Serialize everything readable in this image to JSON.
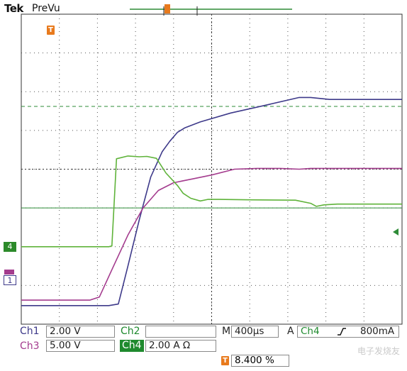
{
  "header": {
    "brand": "Tek",
    "mode": "PreVu",
    "trigger_marker": "T"
  },
  "channels": {
    "ch1": {
      "label": "Ch1",
      "value": "2.00 V",
      "color": "#3e3a8a",
      "marker": "1"
    },
    "ch2": {
      "label": "Ch2",
      "value": "",
      "color": "#1f8a2e"
    },
    "ch3": {
      "label": "Ch3",
      "value": "5.00 V",
      "color": "#a43c8e"
    },
    "ch4": {
      "label": "Ch4",
      "value": "2.00 A Ω",
      "color": "#5fb33a",
      "marker": "4"
    }
  },
  "timebase": {
    "label": "M",
    "value": "400µs"
  },
  "trigger": {
    "mode": "A",
    "source": "Ch4",
    "slope_icon": "rising-edge-icon",
    "level": "800mA"
  },
  "position": {
    "icon": "T",
    "value": "8.400 %"
  },
  "chart_data": {
    "type": "line",
    "grid": true,
    "x_divisions": 10,
    "y_divisions": 8,
    "x_unit": "div",
    "y_unit": "div",
    "trigger_level_div": 1.62,
    "series": [
      {
        "name": "Ch1",
        "color": "#3e3a8a",
        "x": [
          0,
          2.3,
          2.55,
          2.8,
          3.1,
          3.4,
          3.7,
          3.9,
          4.1,
          4.3,
          4.7,
          5.5,
          6.5,
          7.3,
          7.6,
          8.1,
          9.0,
          10.0
        ],
        "y": [
          -3.52,
          -3.52,
          -3.48,
          -2.5,
          -1.3,
          -0.2,
          0.45,
          0.72,
          0.95,
          1.07,
          1.22,
          1.45,
          1.67,
          1.85,
          1.85,
          1.8,
          1.8,
          1.8
        ]
      },
      {
        "name": "Ch3",
        "color": "#a43c8e",
        "x": [
          0,
          1.8,
          2.05,
          2.4,
          2.8,
          3.2,
          3.6,
          4.0,
          4.5,
          5.0,
          5.6,
          6.2,
          6.8,
          7.3,
          7.6,
          8.2,
          9.0,
          10.0
        ],
        "y": [
          -3.38,
          -3.38,
          -3.3,
          -2.55,
          -1.7,
          -1.0,
          -0.55,
          -0.35,
          -0.25,
          -0.15,
          0.0,
          0.02,
          0.02,
          0.0,
          0.02,
          0.02,
          0.02,
          0.02
        ]
      },
      {
        "name": "Ch4",
        "color": "#5fb33a",
        "x": [
          0,
          2.3,
          2.38,
          2.5,
          2.8,
          3.1,
          3.3,
          3.55,
          3.8,
          4.1,
          4.25,
          4.45,
          4.7,
          4.9,
          5.2,
          6.0,
          7.2,
          7.6,
          7.75,
          7.95,
          8.3,
          9.0,
          10.0
        ],
        "y": [
          -2.0,
          -2.0,
          -1.98,
          0.27,
          0.34,
          0.32,
          0.33,
          0.28,
          -0.1,
          -0.42,
          -0.62,
          -0.75,
          -0.82,
          -0.78,
          -0.78,
          -0.79,
          -0.8,
          -0.88,
          -0.96,
          -0.92,
          -0.9,
          -0.9,
          -0.9
        ]
      }
    ]
  },
  "watermark": "电子发烧友"
}
